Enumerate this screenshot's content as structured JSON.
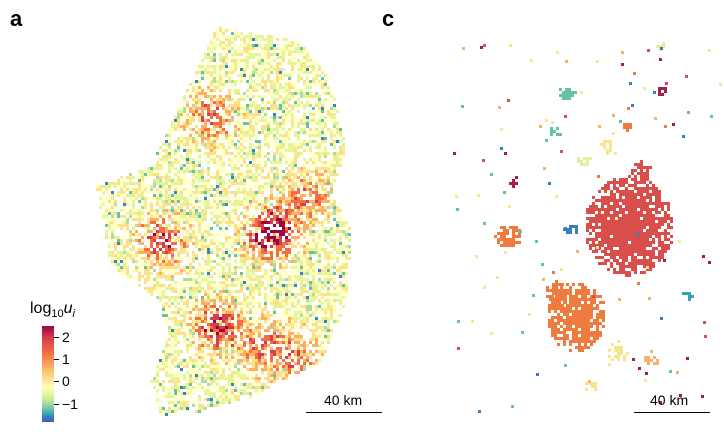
{
  "panels": [
    {
      "label": "a"
    },
    {
      "label": "c"
    }
  ],
  "legend": {
    "title_base": "log",
    "title_sub": "10",
    "title_var": "u",
    "title_var_sub": "i",
    "ticks": [
      "2",
      "1",
      "0",
      "−1"
    ],
    "tick_values": [
      2,
      1,
      0,
      -1
    ],
    "range": [
      -1.5,
      2.5
    ]
  },
  "scalebars": [
    {
      "label": "40 km"
    },
    {
      "label": "40 km"
    }
  ],
  "colors": {
    "high": "#9e0142",
    "mid": "#ffffbf",
    "low": "#5e4fa2",
    "cluster_main": "#d94e4a",
    "cluster_orange": "#f07b3f"
  }
}
